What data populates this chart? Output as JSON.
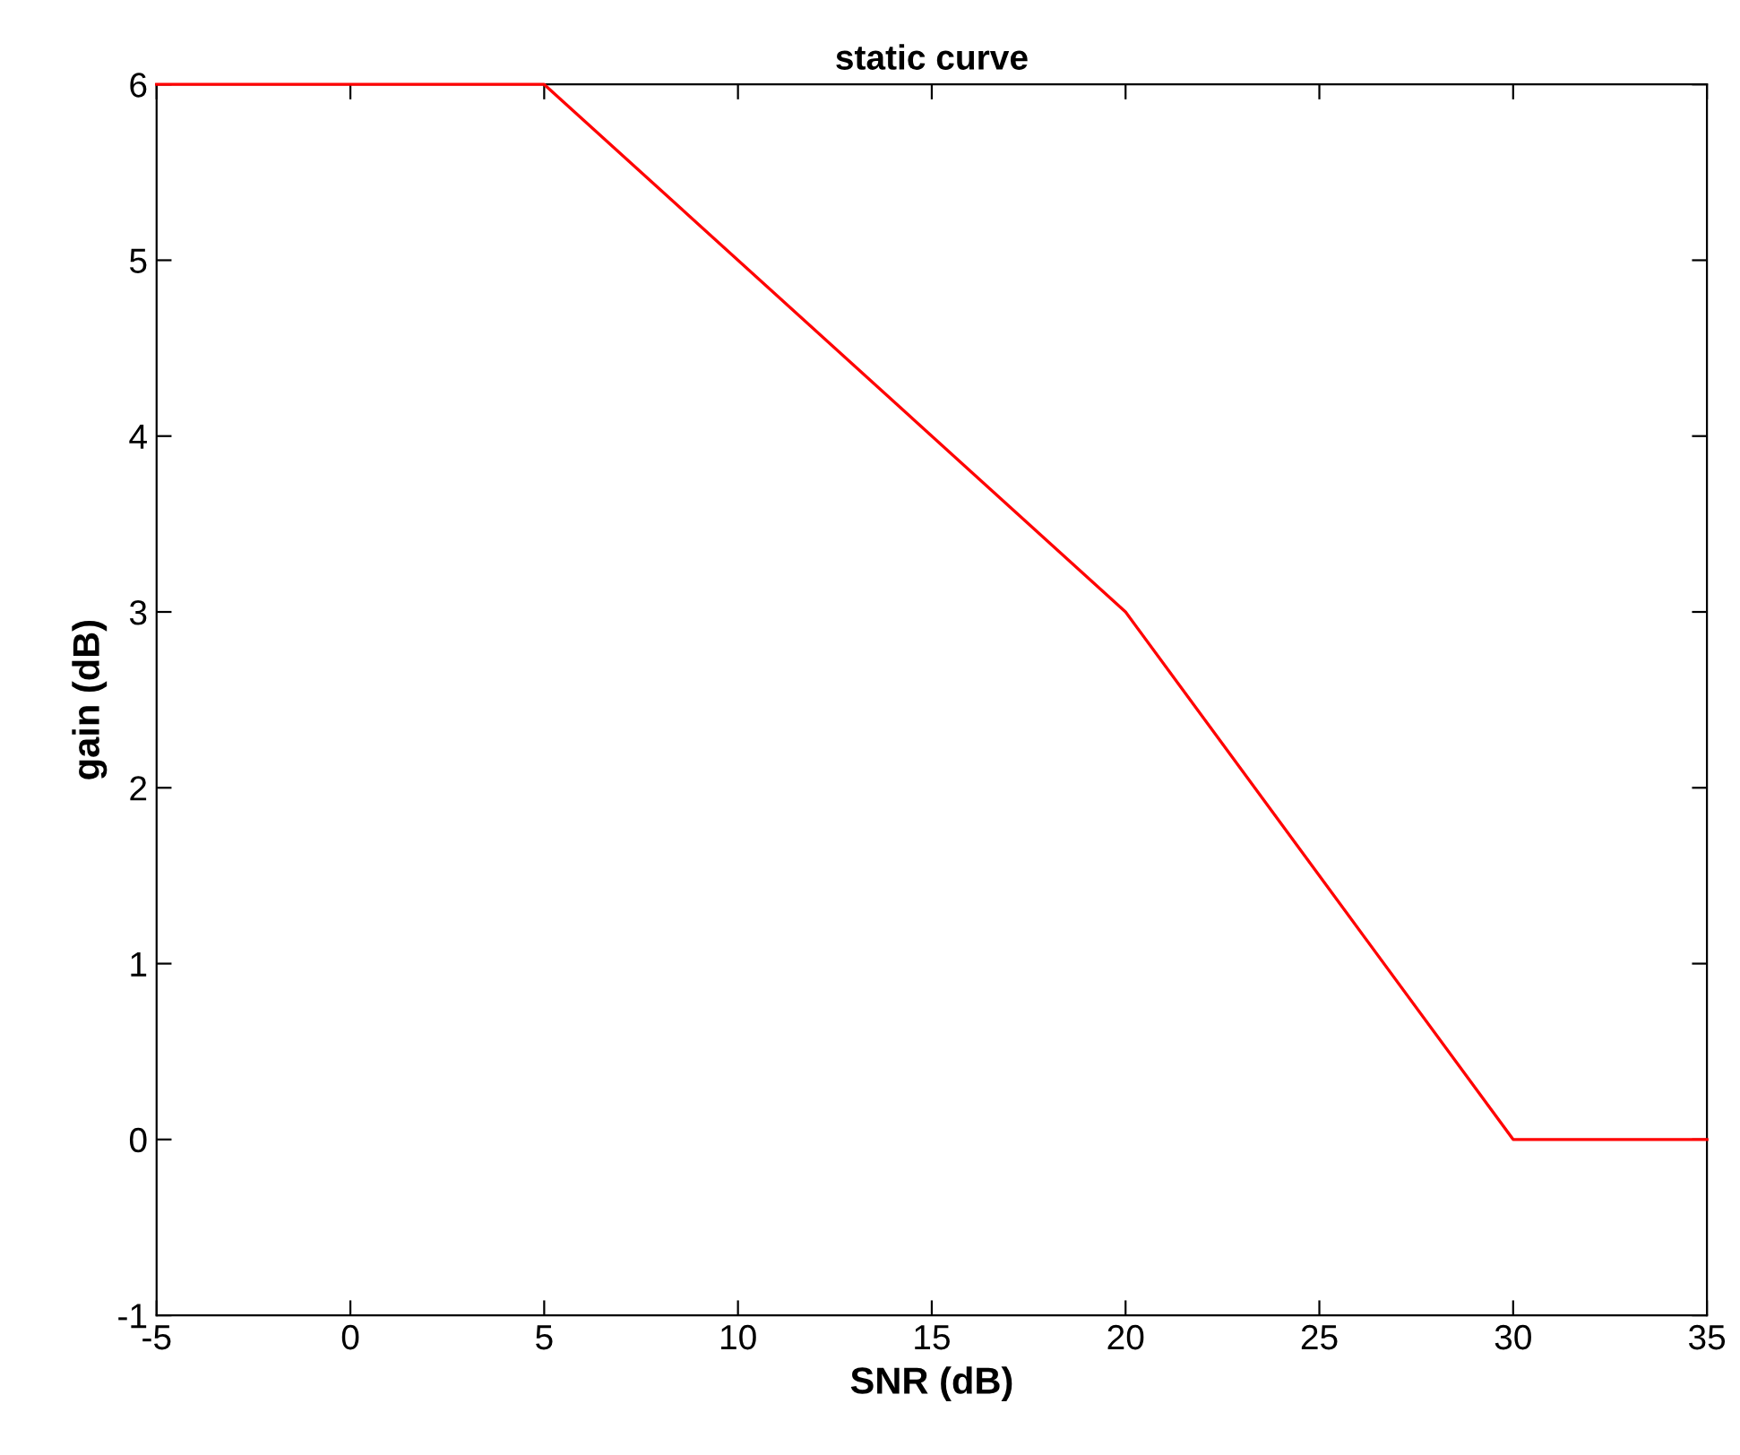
{
  "chart_data": {
    "type": "line",
    "title": "static curve",
    "xlabel": "SNR (dB)",
    "ylabel": "gain (dB)",
    "x": [
      -5,
      5,
      20,
      30,
      35
    ],
    "series": [
      {
        "color": "#ff0000",
        "values": [
          6,
          6,
          3,
          0,
          0
        ]
      }
    ],
    "xlim": [
      -5,
      35
    ],
    "xticks": [
      -5,
      0,
      5,
      10,
      15,
      20,
      25,
      30,
      35
    ],
    "ylim": [
      -1,
      6
    ],
    "yticks": [
      -1,
      0,
      1,
      2,
      3,
      4,
      5,
      6
    ],
    "grid": false,
    "legend": false,
    "marker": "none",
    "line_style": "solid"
  }
}
